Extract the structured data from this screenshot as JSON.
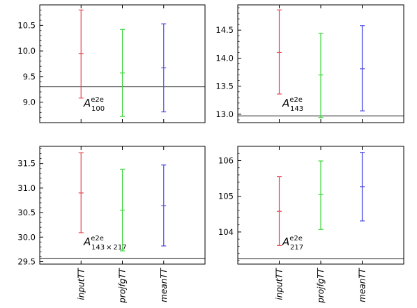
{
  "chart_data": [
    {
      "type": "errorbar",
      "panel_label": {
        "base": "A",
        "superscript": "e2e",
        "subscript": "100"
      },
      "categories": [
        "inputTT",
        "projfgTT",
        "meanTT"
      ],
      "central": [
        9.95,
        9.57,
        9.67
      ],
      "lower": [
        9.08,
        8.72,
        8.81
      ],
      "upper": [
        10.8,
        10.42,
        10.53
      ],
      "reference_line": 9.3,
      "ylim": [
        8.6,
        10.9
      ],
      "yticks": [
        9.0,
        9.5,
        10.0,
        10.5
      ],
      "ytick_labels": [
        "9.0",
        "9.5",
        "10.0",
        "10.5"
      ]
    },
    {
      "type": "errorbar",
      "panel_label": {
        "base": "A",
        "superscript": "e2e",
        "subscript": "143"
      },
      "categories": [
        "inputTT",
        "projfgTT",
        "meanTT"
      ],
      "central": [
        14.1,
        13.7,
        13.81
      ],
      "lower": [
        13.36,
        12.94,
        13.06
      ],
      "upper": [
        14.86,
        14.44,
        14.58
      ],
      "reference_line": 12.97,
      "ylim": [
        12.85,
        14.95
      ],
      "yticks": [
        13.0,
        13.5,
        14.0,
        14.5
      ],
      "ytick_labels": [
        "13.0",
        "13.5",
        "14.0",
        "14.5"
      ]
    },
    {
      "type": "errorbar",
      "panel_label": {
        "base": "A",
        "superscript": "e2e",
        "subscript": "143 × 217"
      },
      "categories": [
        "inputTT",
        "projfgTT",
        "meanTT"
      ],
      "central": [
        30.9,
        30.55,
        30.64
      ],
      "lower": [
        30.09,
        29.72,
        29.82
      ],
      "upper": [
        31.72,
        31.38,
        31.47
      ],
      "reference_line": 29.57,
      "ylim": [
        29.45,
        31.85
      ],
      "yticks": [
        29.5,
        30.0,
        30.5,
        31.0,
        31.5
      ],
      "ytick_labels": [
        "29.5",
        "30.0",
        "30.5",
        "31.0",
        "31.5"
      ]
    },
    {
      "type": "errorbar",
      "panel_label": {
        "base": "A",
        "superscript": "e2e",
        "subscript": "217"
      },
      "categories": [
        "inputTT",
        "projfgTT",
        "meanTT"
      ],
      "central": [
        104.58,
        105.05,
        105.27
      ],
      "lower": [
        103.62,
        104.07,
        104.31
      ],
      "upper": [
        105.55,
        105.99,
        106.23
      ],
      "reference_line": 103.25,
      "ylim": [
        103.1,
        106.4
      ],
      "yticks": [
        104,
        105,
        106
      ],
      "ytick_labels": [
        "104",
        "105",
        "106"
      ]
    }
  ],
  "colors": {
    "inputTT": "#e8474f",
    "projfgTT": "#3fd43f",
    "meanTT": "#4a4ae6",
    "reference_line": "#333333",
    "axes": "#000000"
  }
}
